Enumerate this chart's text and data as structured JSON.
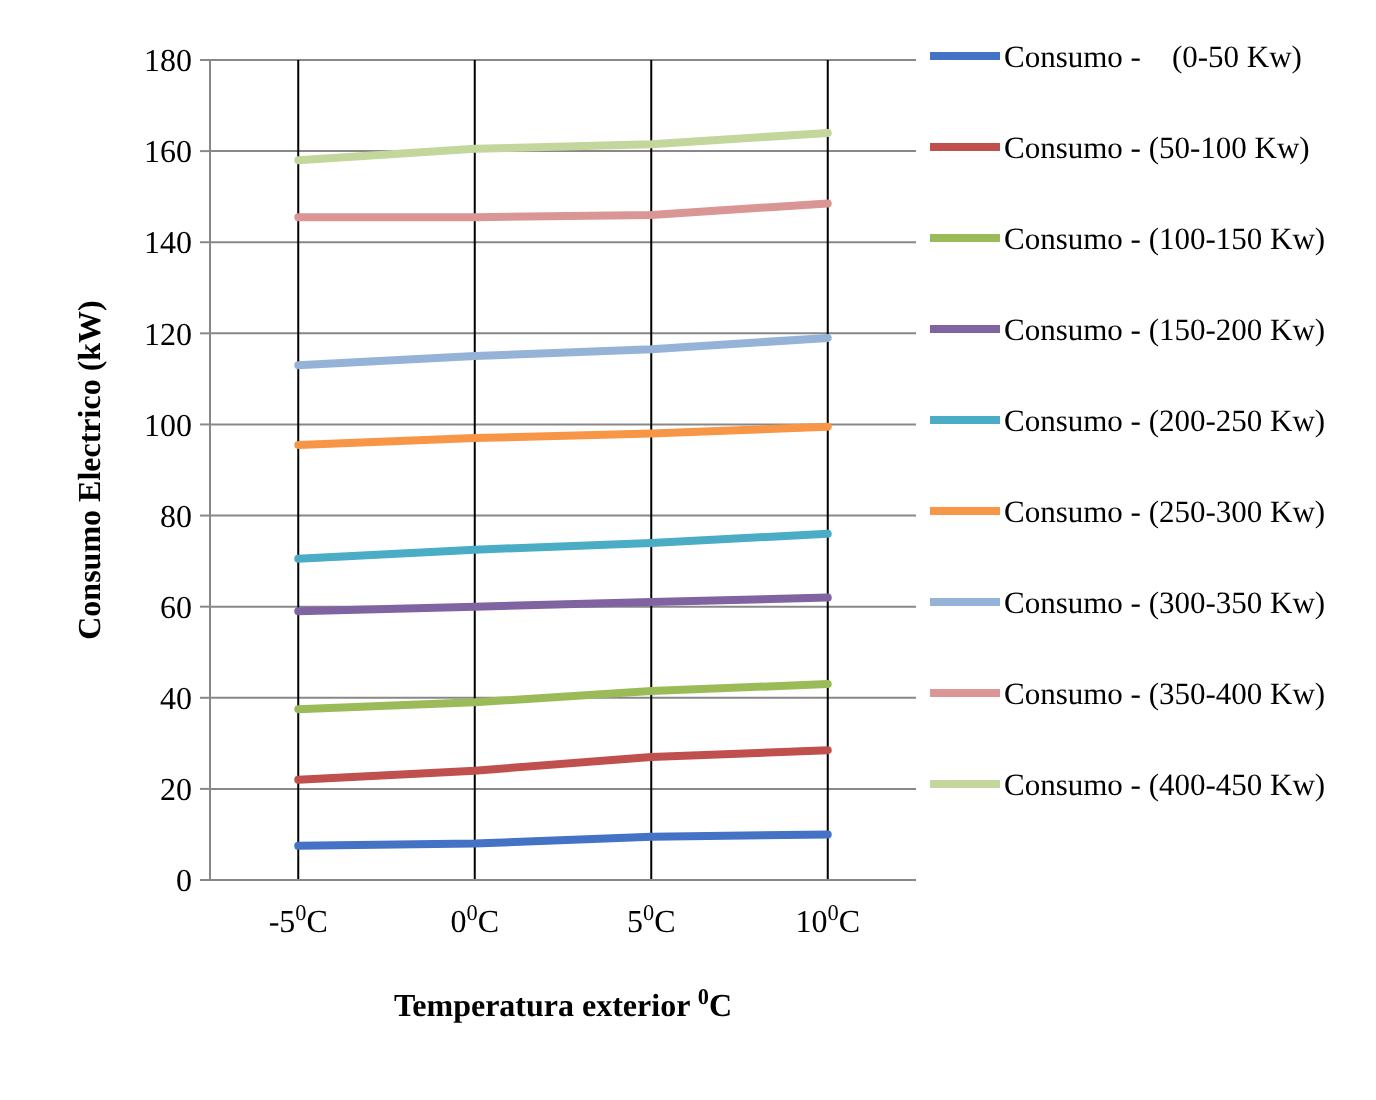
{
  "chart_data": {
    "type": "line",
    "xlabel": "Temperatura exterior $^{0}$C",
    "ylabel": "Consumo Electrico (kW)",
    "categories": [
      "-5$^{0}$C",
      "0$^{0}$C",
      "5$^{0}$C",
      "10$^{0}$C"
    ],
    "ylim": [
      0,
      180
    ],
    "yticks": [
      0,
      20,
      40,
      60,
      80,
      100,
      120,
      140,
      160,
      180
    ],
    "grid": true,
    "legend": "right",
    "marker": "none",
    "line_style": "solid",
    "series": [
      {
        "name": "Consumo -    (0-50 Kw)",
        "color": "#4472c4",
        "values": [
          7.5,
          8,
          9.5,
          10
        ]
      },
      {
        "name": "Consumo - (50-100 Kw)",
        "color": "#c0504d",
        "values": [
          22,
          24,
          27,
          28.5
        ]
      },
      {
        "name": "Consumo - (100-150 Kw)",
        "color": "#9bbb59",
        "values": [
          37.5,
          39,
          41.5,
          43
        ]
      },
      {
        "name": "Consumo - (150-200 Kw)",
        "color": "#8064a2",
        "values": [
          59,
          60,
          61,
          62
        ]
      },
      {
        "name": "Consumo - (200-250 Kw)",
        "color": "#4bacc6",
        "values": [
          70.5,
          72.5,
          74,
          76
        ]
      },
      {
        "name": "Consumo - (250-300 Kw)",
        "color": "#f79646",
        "values": [
          95.5,
          97,
          98,
          99.5
        ]
      },
      {
        "name": "Consumo - (300-350 Kw)",
        "color": "#95b3d7",
        "values": [
          113,
          115,
          116.5,
          119
        ]
      },
      {
        "name": "Consumo - (350-400 Kw)",
        "color": "#da9694",
        "values": [
          145.5,
          145.5,
          146,
          148.5
        ]
      },
      {
        "name": "Consumo - (400-450 Kw)",
        "color": "#c3d69b",
        "values": [
          158,
          160.5,
          161.5,
          164
        ]
      }
    ]
  }
}
